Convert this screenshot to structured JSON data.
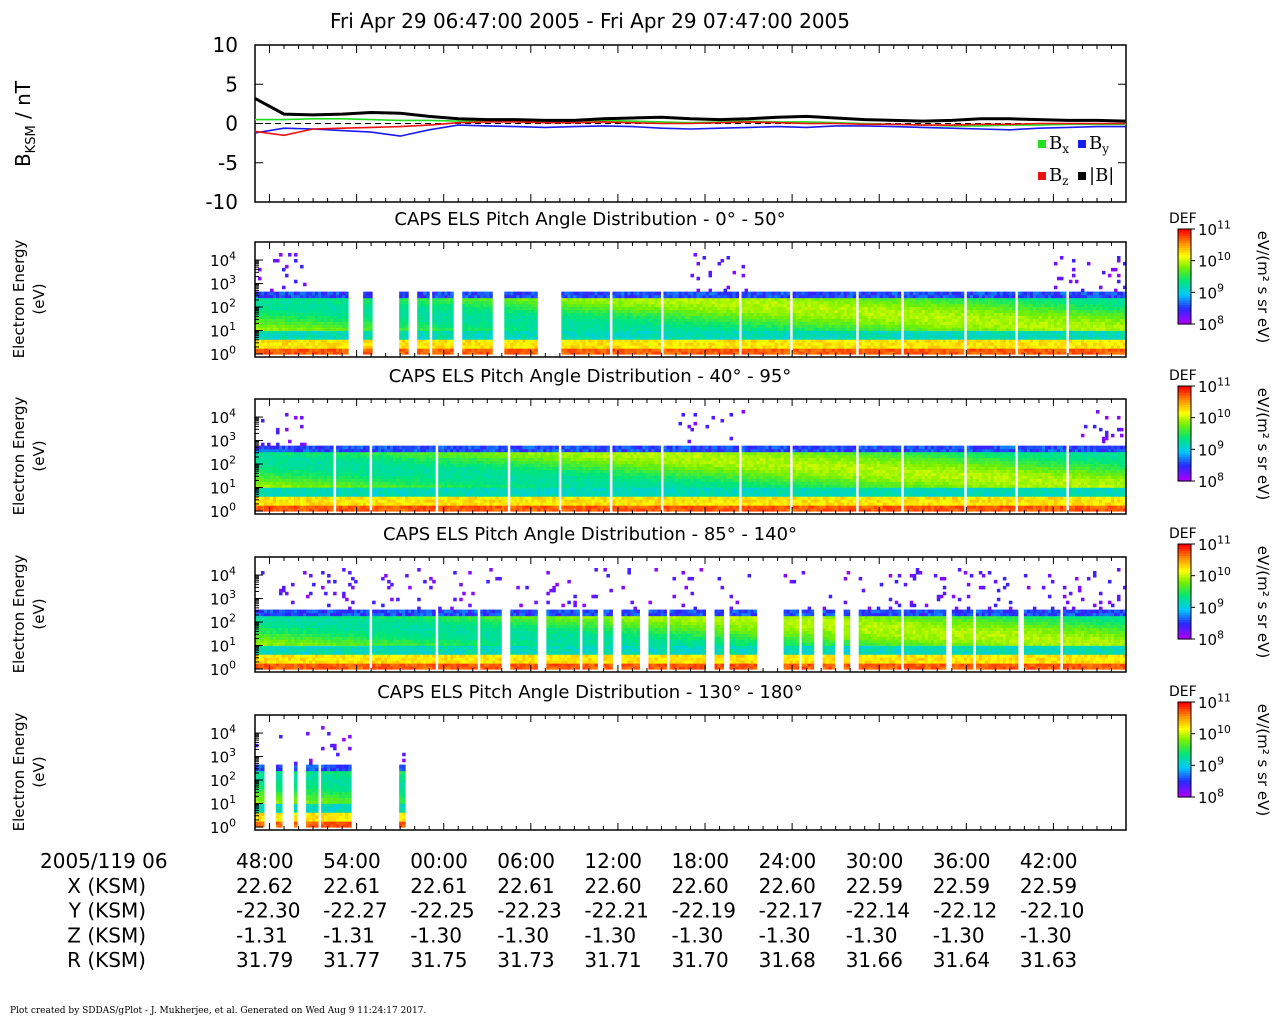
{
  "title": "Fri Apr 29 06:47:00 2005 - Fri Apr 29 07:47:00 2005",
  "footer": "Plot created by SDDAS/gPlot - J. Mukherjee, et al.  Generated on Wed Aug 9 11:24:17 2017.",
  "chart_data": [
    {
      "type": "line",
      "ylabel": "B",
      "ylabel_sub": "KSM",
      "ylabel_unit": " / nT",
      "ylim": [
        -10,
        10
      ],
      "yticks": [
        "10",
        "5",
        "0",
        "-5",
        "-10"
      ],
      "x_minutes": [
        0,
        2,
        4,
        6,
        8,
        10,
        12,
        14,
        16,
        18,
        20,
        22,
        24,
        26,
        28,
        30,
        32,
        34,
        36,
        38,
        40,
        42,
        44,
        46,
        48,
        50,
        52,
        54,
        56,
        58,
        60
      ],
      "series": [
        {
          "name": "Bx",
          "color": "#22dd22",
          "values": [
            0.5,
            0.5,
            0.6,
            0.6,
            0.5,
            0.4,
            0.4,
            0.3,
            0.3,
            0.2,
            0.2,
            0.3,
            0.4,
            0.3,
            0.2,
            0.1,
            0.2,
            0.3,
            0.2,
            0.2,
            0.1,
            0.0,
            -0.1,
            -0.2,
            -0.3,
            -0.3,
            -0.2,
            -0.2,
            -0.1,
            -0.1,
            -0.1
          ]
        },
        {
          "name": "By",
          "color": "#1a1aee",
          "values": [
            -1.2,
            -0.6,
            -0.7,
            -0.9,
            -1.1,
            -1.6,
            -0.8,
            -0.2,
            -0.3,
            -0.4,
            -0.5,
            -0.4,
            -0.3,
            -0.4,
            -0.6,
            -0.7,
            -0.6,
            -0.5,
            -0.4,
            -0.5,
            -0.3,
            -0.3,
            -0.4,
            -0.5,
            -0.6,
            -0.7,
            -0.8,
            -0.6,
            -0.5,
            -0.4,
            -0.4
          ]
        },
        {
          "name": "Bz",
          "color": "#ee1111",
          "values": [
            -1.0,
            -1.5,
            -0.7,
            -0.6,
            -0.5,
            -0.4,
            -0.2,
            0.1,
            0.2,
            0.2,
            0.1,
            0.1,
            0.2,
            0.1,
            0.0,
            0.0,
            0.1,
            0.2,
            0.1,
            0.0,
            0.0,
            -0.1,
            -0.1,
            -0.2,
            -0.2,
            -0.1,
            -0.1,
            0.0,
            0.0,
            0.0,
            0.0
          ]
        },
        {
          "name": "|B|",
          "color": "#000000",
          "values": [
            3.2,
            1.2,
            1.1,
            1.2,
            1.4,
            1.3,
            0.9,
            0.6,
            0.5,
            0.5,
            0.4,
            0.4,
            0.6,
            0.7,
            0.8,
            0.6,
            0.5,
            0.6,
            0.8,
            0.9,
            0.7,
            0.5,
            0.4,
            0.3,
            0.4,
            0.6,
            0.6,
            0.5,
            0.4,
            0.4,
            0.3
          ]
        }
      ],
      "legend": [
        "Bx",
        "By",
        "Bz",
        "|B|"
      ],
      "legend_location": "lower-right",
      "zero_line": "dashed"
    },
    {
      "type": "heatmap",
      "title": "CAPS ELS Pitch Angle Distribution - 0° - 50°",
      "ylabel": [
        "Electron Energy",
        "(eV)"
      ],
      "y_scale": "log",
      "yticks": [
        "10",
        "10",
        "10",
        "10",
        "10"
      ],
      "ytick_exps": [
        "4",
        "3",
        "2",
        "1",
        "0"
      ],
      "flux_cutoff_eV": 300,
      "data_gaps_minutes": [
        [
          6.5,
          7.5
        ],
        [
          8.0,
          10.0
        ],
        [
          10.6,
          11.1
        ],
        [
          11.9,
          12.2
        ],
        [
          13.7,
          14.3
        ],
        [
          16.3,
          17.1
        ],
        [
          19.5,
          21.2
        ]
      ],
      "scan_gaps_minutes": [
        24.5,
        28.0,
        33.5,
        37.0,
        41.5,
        44.5,
        49.0,
        52.5,
        56.0
      ],
      "high_energy_speckle_minutes": [
        [
          0,
          3.5
        ],
        [
          29,
          34
        ],
        [
          55,
          60
        ]
      ],
      "colorbar": {
        "label": "DEF",
        "ticks": [
          "10",
          "10",
          "10",
          "10"
        ],
        "tick_exps": [
          "11",
          "10",
          "9",
          "8"
        ],
        "unit": "eV/(m² s sr eV)"
      }
    },
    {
      "type": "heatmap",
      "title": "CAPS ELS Pitch Angle Distribution - 40° - 95°",
      "ylabel": [
        "Electron Energy",
        "(eV)"
      ],
      "y_scale": "log",
      "yticks": [
        "10",
        "10",
        "10",
        "10",
        "10"
      ],
      "ytick_exps": [
        "4",
        "3",
        "2",
        "1",
        "0"
      ],
      "flux_cutoff_eV": 400,
      "data_gaps_minutes": [],
      "scan_gaps_minutes": [
        5.5,
        8.0,
        12.5,
        17.5,
        21.0,
        24.5,
        28.0,
        33.5,
        37.0,
        41.5,
        44.5,
        49.0,
        52.5,
        56.0
      ],
      "high_energy_speckle_minutes": [
        [
          0,
          3.5
        ],
        [
          29,
          34
        ],
        [
          57,
          60
        ]
      ],
      "colorbar": {
        "label": "DEF",
        "ticks": [
          "10",
          "10",
          "10",
          "10"
        ],
        "tick_exps": [
          "11",
          "10",
          "9",
          "8"
        ],
        "unit": "eV/(m² s sr eV)"
      }
    },
    {
      "type": "heatmap",
      "title": "CAPS ELS Pitch Angle Distribution - 85° - 140°",
      "ylabel": [
        "Electron Energy",
        "(eV)"
      ],
      "y_scale": "log",
      "yticks": [
        "10",
        "10",
        "10",
        "10",
        "10"
      ],
      "ytick_exps": [
        "4",
        "3",
        "2",
        "1",
        "0"
      ],
      "flux_cutoff_eV": 250,
      "data_gaps_minutes": [
        [
          17.0,
          17.5
        ],
        [
          19.5,
          20.0
        ],
        [
          23.5,
          24.0
        ],
        [
          24.7,
          25.3
        ],
        [
          26.5,
          27.0
        ],
        [
          31.0,
          31.6
        ],
        [
          32.2,
          32.7
        ],
        [
          34.5,
          36.5
        ],
        [
          38.5,
          39.0
        ],
        [
          40.0,
          40.5
        ],
        [
          41.0,
          41.5
        ],
        [
          47.5,
          48.0
        ],
        [
          52.5,
          53.0
        ]
      ],
      "scan_gaps_minutes": [
        8.0,
        12.5,
        15.5,
        22.5,
        28.5,
        37.5,
        44.5,
        49.5,
        55.5
      ],
      "high_energy_speckle_minutes": [
        [
          0,
          7
        ],
        [
          8,
          60
        ]
      ],
      "colorbar": {
        "label": "DEF",
        "ticks": [
          "10",
          "10",
          "10",
          "10"
        ],
        "tick_exps": [
          "11",
          "10",
          "9",
          "8"
        ],
        "unit": "eV/(m² s sr eV)"
      }
    },
    {
      "type": "heatmap",
      "title": "CAPS ELS Pitch Angle Distribution - 130° - 180°",
      "ylabel": [
        "Electron Energy",
        "(eV)"
      ],
      "y_scale": "log",
      "yticks": [
        "10",
        "10",
        "10",
        "10",
        "10"
      ],
      "ytick_exps": [
        "4",
        "3",
        "2",
        "1",
        "0"
      ],
      "data_spans_minutes": [
        [
          0,
          0.7
        ],
        [
          1.5,
          1.8
        ],
        [
          2.6,
          2.9
        ],
        [
          3.6,
          4.3
        ],
        [
          4.5,
          6.6
        ],
        [
          10.0,
          10.4
        ],
        [
          11.9,
          12.1
        ]
      ],
      "colorbar": {
        "label": "DEF",
        "ticks": [
          "10",
          "10",
          "10",
          "10"
        ],
        "tick_exps": [
          "11",
          "10",
          "9",
          "8"
        ],
        "unit": "eV/(m² s sr eV)"
      }
    }
  ],
  "x_axis": {
    "start_label": "2005/119 06",
    "tick_labels": [
      "48:00",
      "54:00",
      "00:00",
      "06:00",
      "12:00",
      "18:00",
      "24:00",
      "30:00",
      "36:00",
      "42:00"
    ],
    "ephemeris": [
      {
        "label": "X (KSM)",
        "values": [
          "22.62",
          "22.61",
          "22.61",
          "22.61",
          "22.60",
          "22.60",
          "22.60",
          "22.59",
          "22.59",
          "22.59"
        ]
      },
      {
        "label": "Y (KSM)",
        "values": [
          "-22.30",
          "-22.27",
          "-22.25",
          "-22.23",
          "-22.21",
          "-22.19",
          "-22.17",
          "-22.14",
          "-22.12",
          "-22.10"
        ]
      },
      {
        "label": "Z (KSM)",
        "values": [
          "-1.31",
          "-1.31",
          "-1.30",
          "-1.30",
          "-1.30",
          "-1.30",
          "-1.30",
          "-1.30",
          "-1.30",
          "-1.30"
        ]
      },
      {
        "label": "R (KSM)",
        "values": [
          "31.79",
          "31.77",
          "31.75",
          "31.73",
          "31.71",
          "31.70",
          "31.68",
          "31.66",
          "31.64",
          "31.63"
        ]
      }
    ]
  }
}
